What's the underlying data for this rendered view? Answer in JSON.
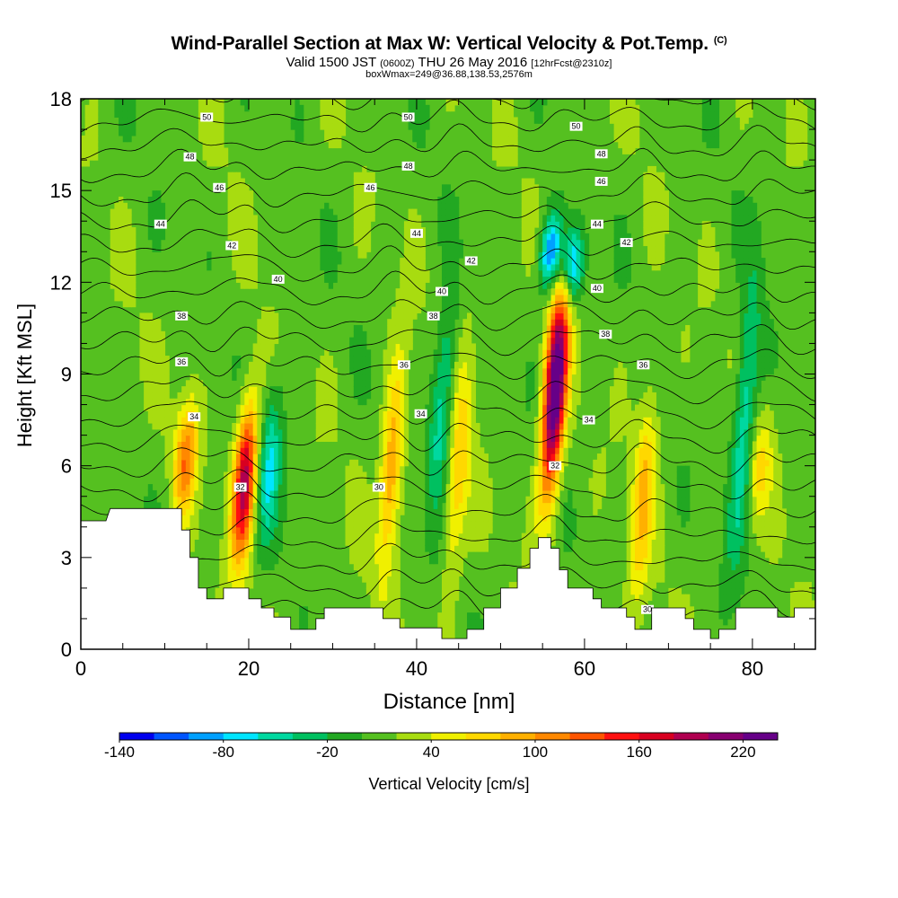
{
  "header": {
    "title": "Wind-Parallel Section at Max W: Vertical Velocity & Pot.Temp.",
    "copyright": "(C)",
    "valid_prefix": "Valid 1500 JST",
    "valid_utc": "(0600Z)",
    "valid_date": "THU 26 May 2016",
    "forecast": "[12hrFcst@2310z]",
    "box_info": "boxWmax=249@36.88,138.53,2576m"
  },
  "chart_data": {
    "type": "heatmap",
    "title": "Wind-Parallel Section at Max W: Vertical Velocity & Pot.Temp.",
    "xlabel": "Distance [nm]",
    "ylabel": "Height [Kft MSL]",
    "xlim": [
      0,
      87.5
    ],
    "ylim": [
      0,
      18
    ],
    "x_ticks": [
      0,
      20,
      40,
      60,
      80
    ],
    "y_ticks": [
      0,
      3,
      6,
      9,
      12,
      15,
      18
    ],
    "colorbar": {
      "label": "Vertical Velocity [cm/s]",
      "ticks": [
        -140,
        -80,
        -20,
        40,
        100,
        160,
        220
      ],
      "levels": [
        -140,
        -120,
        -100,
        -80,
        -60,
        -40,
        -20,
        0,
        20,
        40,
        60,
        80,
        100,
        120,
        140,
        160,
        180,
        200,
        220,
        240
      ],
      "colors": [
        "#0000ee",
        "#0055ff",
        "#00a0ff",
        "#00e5ff",
        "#00d8a0",
        "#00c060",
        "#22a822",
        "#55c020",
        "#a8dc10",
        "#f0f000",
        "#ffd800",
        "#ffb000",
        "#ff8800",
        "#ff5500",
        "#ff1010",
        "#d80020",
        "#b00050",
        "#880070",
        "#660088"
      ]
    },
    "theta_contour_labels": [
      "30",
      "32",
      "34",
      "36",
      "38",
      "40",
      "42",
      "44",
      "46",
      "48",
      "50"
    ],
    "updraft_cores": [
      {
        "x": 12.5,
        "z_range": [
          4,
          8.5
        ],
        "w_max": 100
      },
      {
        "x": 19.5,
        "z_range": [
          2.5,
          8.5
        ],
        "w_max": 180
      },
      {
        "x": 37,
        "z_range": [
          2,
          10
        ],
        "w_max": 90
      },
      {
        "x": 45,
        "z_range": [
          1,
          11
        ],
        "w_max": 60
      },
      {
        "x": 56.5,
        "z_range": [
          4.5,
          12.5
        ],
        "w_max": 249
      },
      {
        "x": 67,
        "z_range": [
          1,
          9
        ],
        "w_max": 70
      },
      {
        "x": 81,
        "z_range": [
          4,
          8
        ],
        "w_max": 50
      }
    ],
    "downdraft_cores": [
      {
        "x": 22.5,
        "z_range": [
          3,
          9
        ],
        "w_min": -70
      },
      {
        "x": 43,
        "z_range": [
          4,
          12
        ],
        "w_min": -70
      },
      {
        "x": 56,
        "z_range": [
          11.5,
          14.5
        ],
        "w_min": -120
      },
      {
        "x": 58.5,
        "z_range": [
          11,
          14
        ],
        "w_min": -110
      },
      {
        "x": 79,
        "z_range": [
          2,
          13
        ],
        "w_min": -70
      }
    ],
    "terrain": [
      [
        0,
        4.2
      ],
      [
        3,
        4.2
      ],
      [
        3.5,
        4.6
      ],
      [
        12,
        4.6
      ],
      [
        12,
        3.9
      ],
      [
        13,
        3.9
      ],
      [
        13,
        3.0
      ],
      [
        14,
        3.0
      ],
      [
        14,
        2.0
      ],
      [
        15,
        2.0
      ],
      [
        15,
        1.65
      ],
      [
        17,
        1.65
      ],
      [
        17,
        2.0
      ],
      [
        20,
        2.0
      ],
      [
        20,
        1.65
      ],
      [
        21.5,
        1.65
      ],
      [
        21.5,
        1.35
      ],
      [
        23,
        1.35
      ],
      [
        23,
        1.05
      ],
      [
        25,
        1.05
      ],
      [
        25,
        0.65
      ],
      [
        28,
        0.65
      ],
      [
        28,
        1.0
      ],
      [
        29,
        1.0
      ],
      [
        29,
        1.35
      ],
      [
        36,
        1.35
      ],
      [
        36,
        1.0
      ],
      [
        38,
        1.0
      ],
      [
        38,
        0.7
      ],
      [
        43,
        0.7
      ],
      [
        43,
        0.35
      ],
      [
        46,
        0.35
      ],
      [
        46,
        0.65
      ],
      [
        48,
        0.65
      ],
      [
        48,
        1.35
      ],
      [
        50,
        1.35
      ],
      [
        50,
        2.0
      ],
      [
        52,
        2.0
      ],
      [
        52,
        2.65
      ],
      [
        53.5,
        2.65
      ],
      [
        53.5,
        3.3
      ],
      [
        54.5,
        3.3
      ],
      [
        54.5,
        3.65
      ],
      [
        56,
        3.65
      ],
      [
        56,
        3.3
      ],
      [
        57,
        3.3
      ],
      [
        57,
        2.6
      ],
      [
        58,
        2.6
      ],
      [
        58,
        2.0
      ],
      [
        61,
        2.0
      ],
      [
        61,
        1.65
      ],
      [
        62,
        1.65
      ],
      [
        62,
        1.35
      ],
      [
        65,
        1.35
      ],
      [
        65,
        1.05
      ],
      [
        66,
        1.05
      ],
      [
        66,
        0.65
      ],
      [
        68,
        0.65
      ],
      [
        68,
        1.35
      ],
      [
        72,
        1.35
      ],
      [
        72,
        1.0
      ],
      [
        73,
        1.0
      ],
      [
        73,
        0.65
      ],
      [
        75,
        0.65
      ],
      [
        75,
        0.35
      ],
      [
        76,
        0.35
      ],
      [
        76,
        0.65
      ],
      [
        78,
        0.65
      ],
      [
        78,
        1.35
      ],
      [
        83,
        1.35
      ],
      [
        83,
        1.05
      ],
      [
        85,
        1.05
      ],
      [
        85,
        1.35
      ],
      [
        87.5,
        1.35
      ],
      [
        87.5,
        0
      ],
      [
        0,
        0
      ]
    ]
  }
}
